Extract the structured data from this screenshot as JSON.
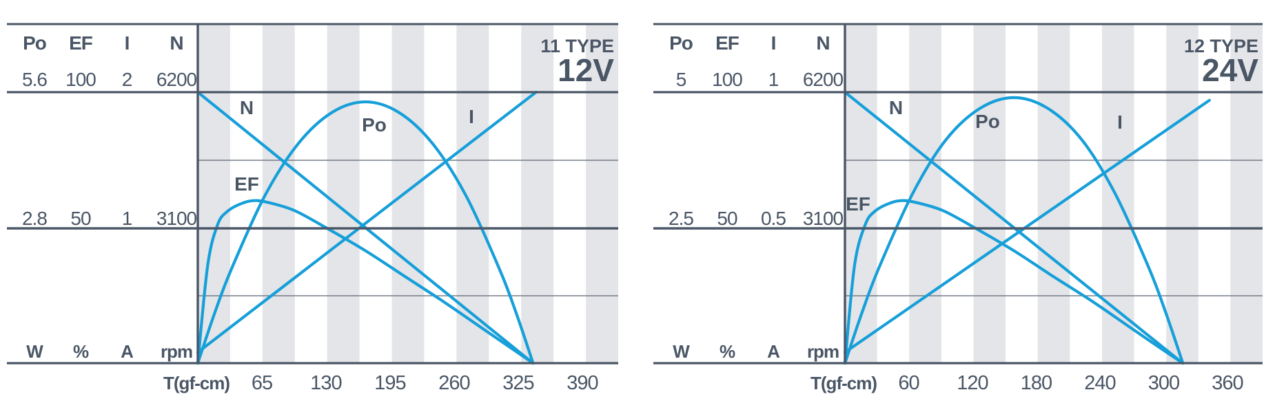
{
  "colors": {
    "accent": "#169fd9",
    "dark": "#4a5666",
    "stripe": "#e4e5e8",
    "thin_line": "#5a6572",
    "background": "#ffffff"
  },
  "chart_data": [
    {
      "type": "line",
      "title_type": "11 TYPE",
      "title_voltage": "12V",
      "table": {
        "headers": [
          "Po",
          "EF",
          "I",
          "N"
        ],
        "rows": [
          [
            "5.6",
            "100",
            "2",
            "6200"
          ],
          [
            "2.8",
            "50",
            "1",
            "3100"
          ]
        ],
        "units": [
          "W",
          "%",
          "A",
          "rpm"
        ]
      },
      "xlabel": "T(gf-cm)",
      "x_ticks": [
        65,
        130,
        195,
        260,
        325,
        390
      ],
      "x_tick_step": 65,
      "grid": "quarter horizontal lines, alternating vertical stripes",
      "legend_position": "labels on curves",
      "y_scales": {
        "Po": {
          "unit": "W",
          "max_at_top": 5.6,
          "mid": 2.8,
          "min": 0
        },
        "EF": {
          "unit": "%",
          "max_at_top": 100,
          "mid": 50,
          "min": 0
        },
        "I": {
          "unit": "A",
          "max_at_top": 2,
          "mid": 1,
          "min": 0
        },
        "N": {
          "unit": "rpm",
          "max_at_top": 6200,
          "mid": 3100,
          "min": 0
        }
      },
      "stall_torque_gf_cm": 340,
      "series": [
        {
          "name": "N",
          "points": [
            [
              0,
              6200
            ],
            [
              340,
              0
            ]
          ]
        },
        {
          "name": "I",
          "points": [
            [
              0,
              0.08
            ],
            [
              343,
              2.0
            ]
          ]
        },
        {
          "name": "Po",
          "points": [
            [
              0,
              0
            ],
            [
              17,
              1.03
            ],
            [
              34,
              1.94
            ],
            [
              68,
              3.46
            ],
            [
              102,
              4.54
            ],
            [
              136,
              5.18
            ],
            [
              170,
              5.4
            ],
            [
              204,
              5.18
            ],
            [
              238,
              4.54
            ],
            [
              272,
              3.46
            ],
            [
              306,
              1.94
            ],
            [
              323,
              1.03
            ],
            [
              340,
              0
            ]
          ]
        },
        {
          "name": "EF",
          "points": [
            [
              0,
              0
            ],
            [
              10,
              36
            ],
            [
              20,
              51
            ],
            [
              30,
              56
            ],
            [
              45,
              59
            ],
            [
              60,
              60
            ],
            [
              80,
              58.5
            ],
            [
              100,
              56
            ],
            [
              130,
              50
            ],
            [
              170,
              41.5
            ],
            [
              210,
              32
            ],
            [
              250,
              22.5
            ],
            [
              290,
              12.5
            ],
            [
              320,
              5
            ],
            [
              340,
              0
            ]
          ]
        }
      ]
    },
    {
      "type": "line",
      "title_type": "12 TYPE",
      "title_voltage": "24V",
      "table": {
        "headers": [
          "Po",
          "EF",
          "I",
          "N"
        ],
        "rows": [
          [
            "5",
            "100",
            "1",
            "6200"
          ],
          [
            "2.5",
            "50",
            "0.5",
            "3100"
          ]
        ],
        "units": [
          "W",
          "%",
          "A",
          "rpm"
        ]
      },
      "xlabel": "T(gf-cm)",
      "x_ticks": [
        60,
        120,
        180,
        240,
        300,
        360
      ],
      "x_tick_step": 60,
      "grid": "quarter horizontal lines, alternating vertical stripes",
      "legend_position": "labels on curves",
      "y_scales": {
        "Po": {
          "unit": "W",
          "max_at_top": 5,
          "mid": 2.5,
          "min": 0
        },
        "EF": {
          "unit": "%",
          "max_at_top": 100,
          "mid": 50,
          "min": 0
        },
        "I": {
          "unit": "A",
          "max_at_top": 1,
          "mid": 0.5,
          "min": 0
        },
        "N": {
          "unit": "rpm",
          "max_at_top": 6200,
          "mid": 3100,
          "min": 0
        }
      },
      "stall_torque_gf_cm": 318,
      "series": [
        {
          "name": "N",
          "points": [
            [
              0,
              6200
            ],
            [
              318,
              0
            ]
          ]
        },
        {
          "name": "I",
          "points": [
            [
              0,
              0.04
            ],
            [
              343,
              0.97
            ]
          ]
        },
        {
          "name": "Po",
          "points": [
            [
              0,
              0
            ],
            [
              16,
              0.93
            ],
            [
              32,
              1.76
            ],
            [
              64,
              3.14
            ],
            [
              95,
              4.12
            ],
            [
              127,
              4.7
            ],
            [
              159,
              4.9
            ],
            [
              191,
              4.7
            ],
            [
              223,
              4.12
            ],
            [
              254,
              3.14
            ],
            [
              286,
              1.76
            ],
            [
              302,
              0.93
            ],
            [
              318,
              0
            ]
          ]
        },
        {
          "name": "EF",
          "points": [
            [
              0,
              0
            ],
            [
              9,
              36
            ],
            [
              19,
              51
            ],
            [
              28,
              56
            ],
            [
              42,
              59
            ],
            [
              56,
              60
            ],
            [
              75,
              58.5
            ],
            [
              94,
              56
            ],
            [
              122,
              50
            ],
            [
              159,
              41.5
            ],
            [
              196,
              32
            ],
            [
              234,
              22.5
            ],
            [
              271,
              12.5
            ],
            [
              299,
              5
            ],
            [
              318,
              0
            ]
          ]
        }
      ]
    }
  ]
}
